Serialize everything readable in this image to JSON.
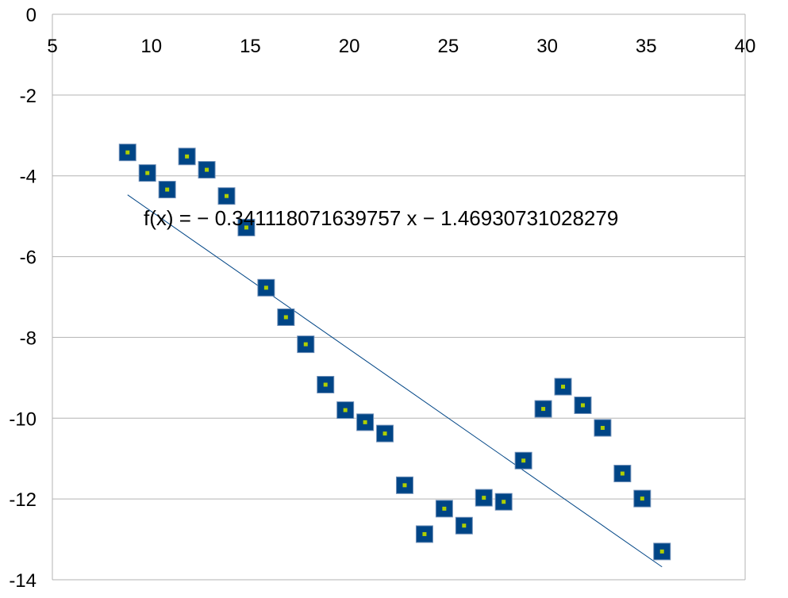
{
  "chart_data": {
    "type": "scatter",
    "title": "",
    "xlabel": "",
    "ylabel": "",
    "xlim": [
      5,
      40
    ],
    "ylim": [
      -14,
      0
    ],
    "x_ticks": [
      5,
      10,
      15,
      20,
      25,
      30,
      35,
      40
    ],
    "y_ticks": [
      0,
      -2,
      -4,
      -6,
      -8,
      -10,
      -12,
      -14
    ],
    "grid": "horizontal",
    "legend": "none",
    "series": [
      {
        "marker": "square",
        "marker_color": "#004586",
        "marker_center_color": "#aecf00",
        "points": [
          {
            "x": 8.8,
            "y": -3.42
          },
          {
            "x": 9.8,
            "y": -3.93
          },
          {
            "x": 10.8,
            "y": -4.34
          },
          {
            "x": 11.8,
            "y": -3.52
          },
          {
            "x": 12.8,
            "y": -3.85
          },
          {
            "x": 13.8,
            "y": -4.5
          },
          {
            "x": 14.8,
            "y": -5.28
          },
          {
            "x": 15.8,
            "y": -6.77
          },
          {
            "x": 16.8,
            "y": -7.5
          },
          {
            "x": 17.8,
            "y": -8.17
          },
          {
            "x": 18.8,
            "y": -9.17
          },
          {
            "x": 19.8,
            "y": -9.8
          },
          {
            "x": 20.8,
            "y": -10.1
          },
          {
            "x": 21.8,
            "y": -10.38
          },
          {
            "x": 22.8,
            "y": -11.66
          },
          {
            "x": 23.8,
            "y": -12.87
          },
          {
            "x": 24.8,
            "y": -12.24
          },
          {
            "x": 25.8,
            "y": -12.66
          },
          {
            "x": 26.8,
            "y": -11.97
          },
          {
            "x": 27.8,
            "y": -12.07
          },
          {
            "x": 28.8,
            "y": -11.05
          },
          {
            "x": 29.8,
            "y": -9.77
          },
          {
            "x": 30.8,
            "y": -9.22
          },
          {
            "x": 31.8,
            "y": -9.68
          },
          {
            "x": 32.8,
            "y": -10.24
          },
          {
            "x": 33.8,
            "y": -11.37
          },
          {
            "x": 34.8,
            "y": -11.99
          },
          {
            "x": 35.8,
            "y": -13.3
          }
        ]
      }
    ],
    "trendline": {
      "slope": -0.341118071639757,
      "intercept": -1.46930731028279,
      "x_range": [
        8.8,
        35.8
      ],
      "color": "#004586",
      "equation": "f(x) = − 0.341118071639757 x − 1.46930731028279"
    }
  }
}
